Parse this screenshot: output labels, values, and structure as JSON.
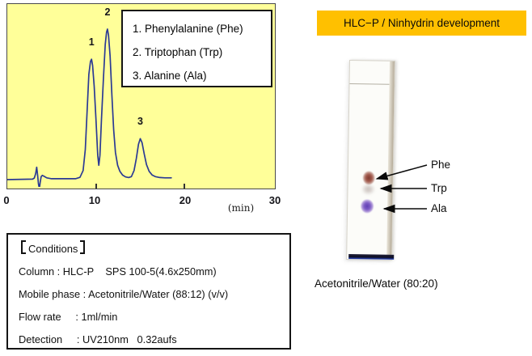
{
  "chart_data": {
    "type": "line",
    "title": "",
    "xlabel": "(min)",
    "ylabel": "",
    "xlim": [
      0,
      30
    ],
    "x_ticks": [
      "0",
      "10",
      "20",
      "30"
    ],
    "grid": false,
    "legend_position": "top-right-box",
    "peaks": [
      {
        "label": "1",
        "name": "Phenylalanine (Phe)",
        "retention_min": 9.5,
        "rel_height": 0.8
      },
      {
        "label": "2",
        "name": "Triptophan (Trp)",
        "retention_min": 11.3,
        "rel_height": 1.0
      },
      {
        "label": "3",
        "name": "Alanine (Ala)",
        "retention_min": 15.0,
        "rel_height": 0.272
      }
    ],
    "trace": [
      [
        0,
        0
      ],
      [
        2.85,
        0.003
      ],
      [
        3.05,
        0.01
      ],
      [
        3.2,
        0.04
      ],
      [
        3.32,
        0.082
      ],
      [
        3.42,
        0.03
      ],
      [
        3.52,
        -0.03
      ],
      [
        3.62,
        -0.06
      ],
      [
        3.72,
        -0.015
      ],
      [
        3.82,
        0.02
      ],
      [
        3.95,
        0.028
      ],
      [
        4.15,
        0.022
      ],
      [
        4.45,
        0.012
      ],
      [
        5.0,
        0.006
      ],
      [
        7.7,
        0.006
      ],
      [
        8.2,
        0.015
      ],
      [
        8.55,
        0.06
      ],
      [
        8.8,
        0.2
      ],
      [
        9.0,
        0.45
      ],
      [
        9.2,
        0.7
      ],
      [
        9.38,
        0.785
      ],
      [
        9.5,
        0.8
      ],
      [
        9.62,
        0.76
      ],
      [
        9.8,
        0.62
      ],
      [
        10.0,
        0.4
      ],
      [
        10.2,
        0.16
      ],
      [
        10.32,
        0.095
      ],
      [
        10.45,
        0.16
      ],
      [
        10.62,
        0.4
      ],
      [
        10.85,
        0.68
      ],
      [
        11.05,
        0.9
      ],
      [
        11.2,
        0.98
      ],
      [
        11.3,
        1.0
      ],
      [
        11.42,
        0.96
      ],
      [
        11.6,
        0.82
      ],
      [
        11.8,
        0.56
      ],
      [
        12.0,
        0.33
      ],
      [
        12.2,
        0.18
      ],
      [
        12.45,
        0.095
      ],
      [
        12.7,
        0.055
      ],
      [
        13.0,
        0.03
      ],
      [
        13.35,
        0.018
      ],
      [
        13.7,
        0.014
      ],
      [
        14.0,
        0.02
      ],
      [
        14.3,
        0.06
      ],
      [
        14.55,
        0.14
      ],
      [
        14.8,
        0.235
      ],
      [
        15.0,
        0.272
      ],
      [
        15.2,
        0.245
      ],
      [
        15.45,
        0.17
      ],
      [
        15.7,
        0.1
      ],
      [
        16.0,
        0.055
      ],
      [
        16.35,
        0.03
      ],
      [
        16.7,
        0.02
      ],
      [
        17.2,
        0.014
      ],
      [
        17.8,
        0.012
      ],
      [
        18.5,
        0.012
      ]
    ]
  },
  "chromatogram": {
    "panel_bg": "#FFFF99",
    "trace_color": "#2B3A94",
    "legend": [
      "1. Phenylalanine (Phe)",
      "2. Triptophan (Trp)",
      "3. Alanine (Ala)"
    ]
  },
  "conditions": {
    "title": "Conditions",
    "title_display": "【Conditions】",
    "lines": [
      "Column : HLC-P    SPS 100-5(4.6x250mm)",
      "Mobile phase : Acetonitrile/Water (88:12) (v/v)",
      "Flow rate     : 1ml/min",
      "Detection     : UV210nm   0.32aufs"
    ]
  },
  "tlc": {
    "header": "HLC−P / Ninhydrin development",
    "header_bg": "#FFC000",
    "caption": "Acetonitrile/Water (80:20)",
    "spots": [
      {
        "label": "Phe",
        "color": "#8d4438"
      },
      {
        "label": "Trp",
        "color": "#9a8a84"
      },
      {
        "label": "Ala",
        "color": "#6f4fc0"
      }
    ]
  }
}
